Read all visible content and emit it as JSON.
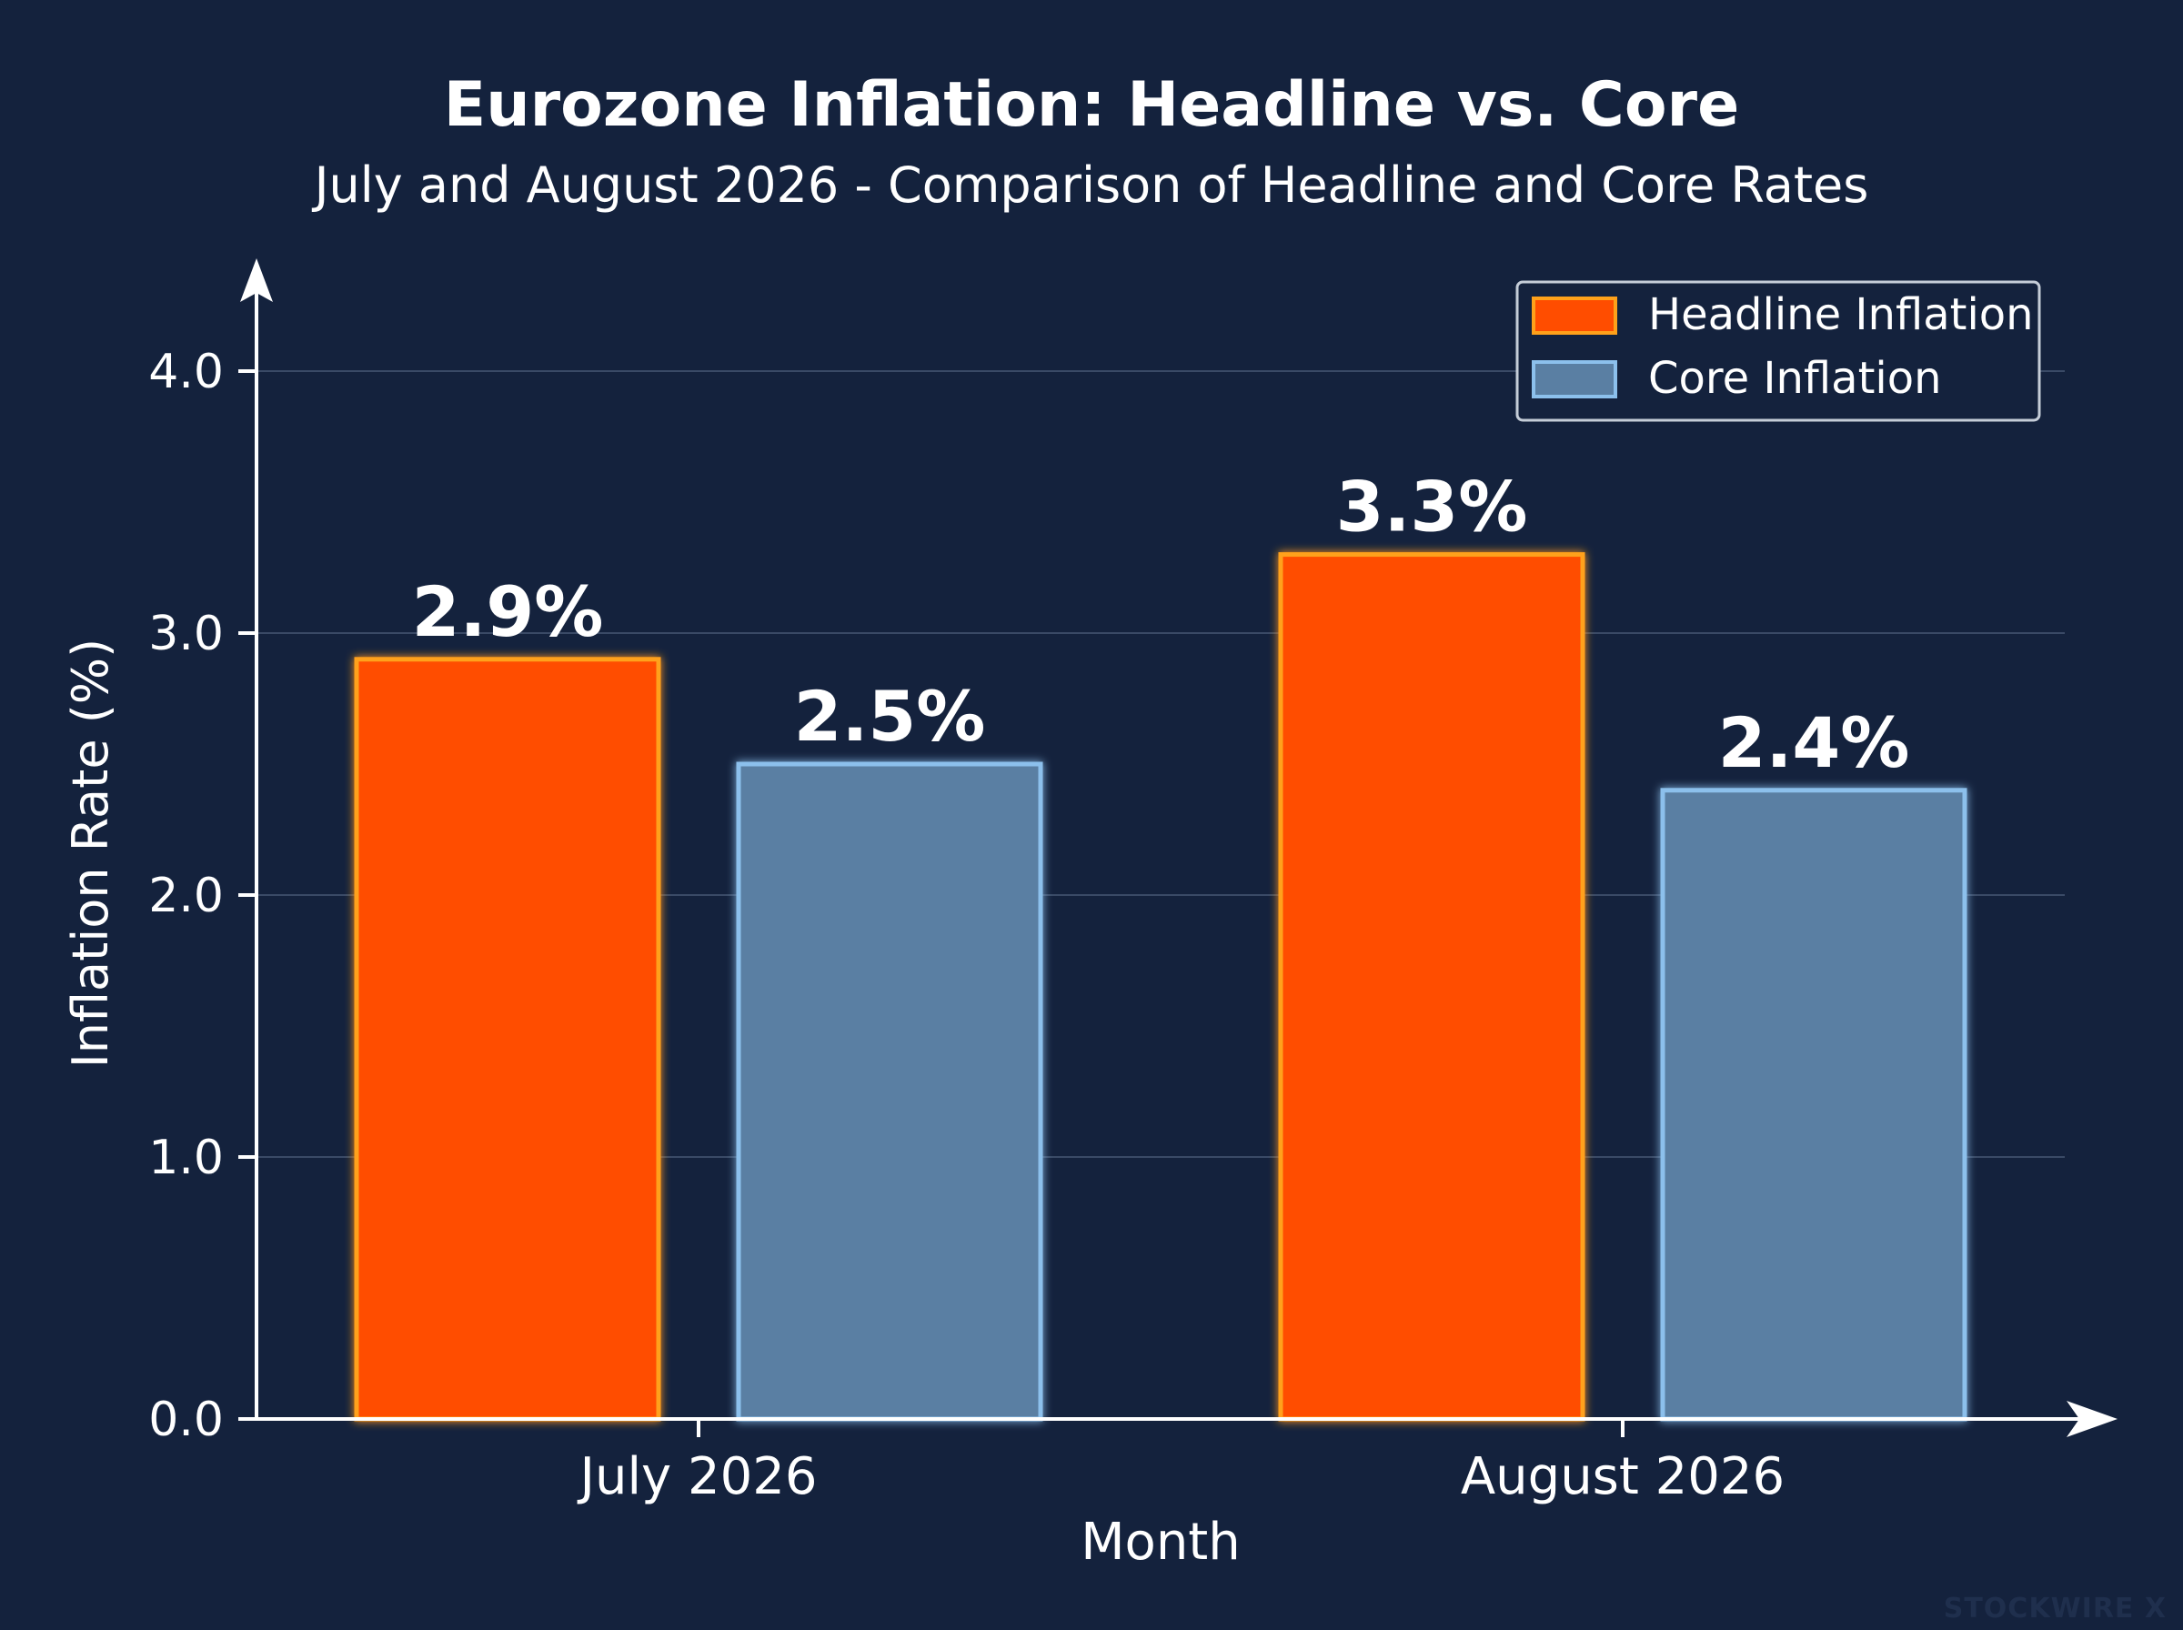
{
  "chart_data": {
    "type": "bar",
    "title": "Eurozone Inflation: Headline vs. Core",
    "subtitle": "July and August 2026 - Comparison of Headline and Core Rates",
    "xlabel": "Month",
    "ylabel": "Inflation Rate (%)",
    "categories": [
      "July 2026",
      "August 2026"
    ],
    "series": [
      {
        "name": "Headline Inflation",
        "values": [
          2.9,
          3.3
        ],
        "labels": [
          "2.9%",
          "3.3%"
        ],
        "color": "#ff4d00",
        "edge_color": "#ffa11a"
      },
      {
        "name": "Core Inflation",
        "values": [
          2.5,
          2.4
        ],
        "labels": [
          "2.5%",
          "2.4%"
        ],
        "color": "#5a7fa3",
        "edge_color": "#8cc0ec"
      }
    ],
    "ylim": [
      0,
      4.3
    ],
    "yticks": [
      0.0,
      1.0,
      2.0,
      3.0,
      4.0
    ],
    "ytick_labels": [
      "0.0",
      "1.0",
      "2.0",
      "3.0",
      "4.0"
    ],
    "grid": true,
    "legend_position": "top-right",
    "background_color": "#14223d",
    "text_color": "#ffffff"
  },
  "watermark": "STOCKWIRE X"
}
